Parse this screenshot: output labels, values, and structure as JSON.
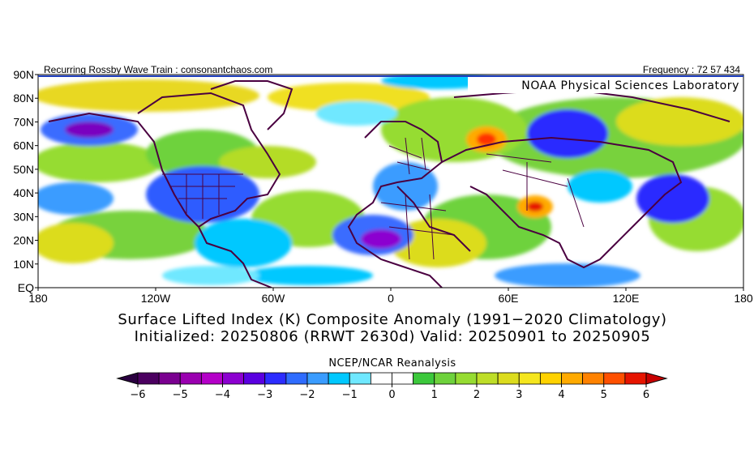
{
  "header": {
    "left_text": "Recurring Rossby Wave Train : consonantchaos.com",
    "right_text": "Frequency : 72 57 434",
    "lab_label": "NOAA Physical Sciences Laboratory"
  },
  "map": {
    "lat_labels": [
      "90N",
      "80N",
      "70N",
      "60N",
      "50N",
      "40N",
      "30N",
      "20N",
      "10N",
      "EQ"
    ],
    "lon_labels": [
      "180",
      "120W",
      "60W",
      "0",
      "60E",
      "120E",
      "180"
    ],
    "anomaly_spots": [
      {
        "lon": -152,
        "lat": 65,
        "value": -3.5
      },
      {
        "lon": -95,
        "lat": 38,
        "value": -2.5
      },
      {
        "lon": -10,
        "lat": 22,
        "value": -2.5
      },
      {
        "lon": 45,
        "lat": 62,
        "value": 5.5
      },
      {
        "lon": 70,
        "lat": 35,
        "value": 5.0
      },
      {
        "lon": 100,
        "lat": 65,
        "value": -3.0
      },
      {
        "lon": 130,
        "lat": 32,
        "value": -2.5
      },
      {
        "lon": -140,
        "lat": 40,
        "value": -1.5
      },
      {
        "lon": 140,
        "lat": 58,
        "value": 2.5
      }
    ]
  },
  "title": {
    "line1": "Surface Lifted Index (K) Composite Anomaly (1991−2020 Climatology)",
    "line2": "Initialized: 20250806 (RRWT 2630d) Valid: 20250901 to 20250905"
  },
  "source_label": "NCEP/NCAR Reanalysis",
  "colorbar": {
    "ticks": [
      "−6",
      "−5",
      "−4",
      "−3",
      "−2",
      "−1",
      "0",
      "1",
      "2",
      "3",
      "4",
      "5",
      "6"
    ],
    "colors": [
      "#4b0060",
      "#7a0090",
      "#9a00b0",
      "#b400c8",
      "#8c00d0",
      "#5a00e0",
      "#2c2cff",
      "#2f6cff",
      "#3a9cff",
      "#00c8ff",
      "#6fe8ff",
      "#ffffff",
      "#ffffff",
      "#3cc83c",
      "#6ed23c",
      "#96dc32",
      "#bede28",
      "#dcdc1e",
      "#f5e61e",
      "#ffd200",
      "#ffaa00",
      "#ff8200",
      "#ff5000",
      "#e61400"
    ],
    "low_arrow_color": "#2a0040",
    "high_arrow_color": "#c80000"
  }
}
